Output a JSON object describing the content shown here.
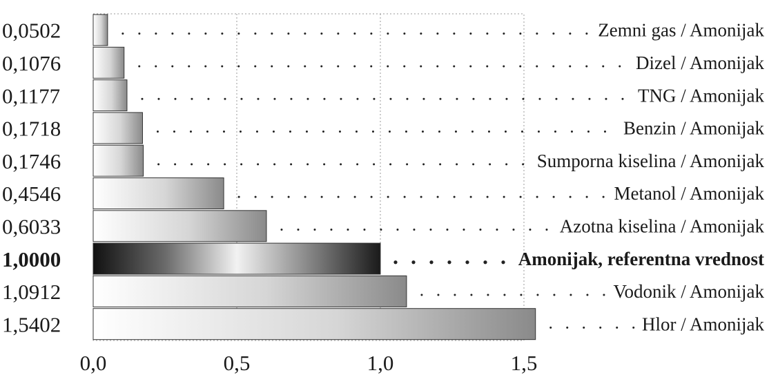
{
  "chart_data": {
    "type": "bar",
    "orientation": "horizontal",
    "categories": [
      "Zemni gas / Amonijak",
      "Dizel / Amonijak",
      "TNG / Amonijak",
      "Benzin / Amonijak",
      "Sumporna kiselina / Amonijak",
      "Metanol / Amonijak",
      "Azotna kiselina / Amonijak",
      "Amonijak, referentna vrednost",
      "Vodonik / Amonijak",
      "Hlor / Amonijak"
    ],
    "values": [
      0.0502,
      0.1076,
      0.1177,
      0.1718,
      0.1746,
      0.4546,
      0.6033,
      1.0,
      1.0912,
      1.5402
    ],
    "value_labels": [
      "0,0502",
      "0,1076",
      "0,1177",
      "0,1718",
      "0,1746",
      "0,4546",
      "0,6033",
      "1,0000",
      "1,0912",
      "1,5402"
    ],
    "reference_index": 7,
    "x_ticks": [
      "0,0",
      "0,5",
      "1,0",
      "1,5"
    ],
    "x_tick_values": [
      0,
      0.5,
      1.0,
      1.5
    ],
    "xlim": [
      0,
      1.5
    ],
    "title": "",
    "xlabel": "",
    "ylabel": "",
    "grid": "vertical dotted",
    "colors": {
      "bar_light": "#ffffff",
      "bar_dark": "#8a8a8a",
      "bar_edge": "#333333",
      "ref_dark": "#111111",
      "ref_light": "#f2f2f2",
      "leader_dots": "#222222",
      "grid": "#999999"
    }
  }
}
